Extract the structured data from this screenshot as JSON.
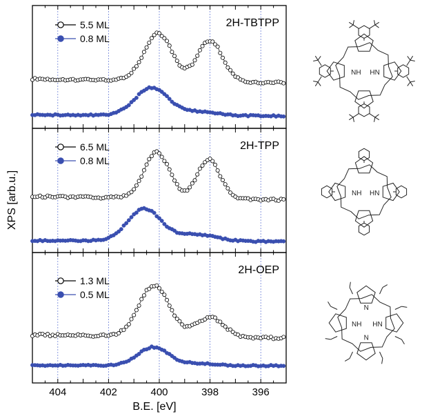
{
  "colors": {
    "accent": "#3a4fb0",
    "frame": "#000000",
    "guide": "#6b7fd7"
  },
  "figure": {
    "ylabel": "XPS [arb.u.]",
    "xlabel": "B.E. [eV]",
    "xticks": [
      "404",
      "402",
      "400",
      "398",
      "396"
    ]
  },
  "chart_data": [
    {
      "type": "line",
      "title": "2H-TBTPP",
      "xlabel": "B.E. [eV]",
      "ylabel": "XPS [arb.u.]",
      "xlim": [
        405,
        395
      ],
      "x_reversed": true,
      "series": [
        {
          "name": "5.5 ML",
          "marker": "open-circle",
          "color": "#000000",
          "peaks": [
            {
              "center": 400.05,
              "height": 0.75,
              "width": 0.55
            },
            {
              "center": 398.0,
              "height": 0.65,
              "width": 0.5
            }
          ],
          "baseline": [
            0.0,
            0.06
          ]
        },
        {
          "name": "0.8 ML",
          "marker": "filled-circle",
          "color": "#3a4fb0",
          "peaks": [
            {
              "center": 400.3,
              "height": 0.5,
              "width": 0.65
            },
            {
              "center": 398.4,
              "height": 0.07,
              "width": 0.7
            }
          ],
          "baseline": [
            0.0,
            0.02
          ]
        }
      ]
    },
    {
      "type": "line",
      "title": "2H-TPP",
      "xlabel": "B.E. [eV]",
      "ylabel": "XPS [arb.u.]",
      "xlim": [
        405,
        395
      ],
      "x_reversed": true,
      "series": [
        {
          "name": "6.5 ML",
          "marker": "open-circle",
          "color": "#000000",
          "peaks": [
            {
              "center": 400.1,
              "height": 0.72,
              "width": 0.5
            },
            {
              "center": 398.05,
              "height": 0.62,
              "width": 0.45
            }
          ],
          "baseline": [
            0.0,
            0.06
          ]
        },
        {
          "name": "0.8 ML",
          "marker": "filled-circle",
          "color": "#3a4fb0",
          "peaks": [
            {
              "center": 400.6,
              "height": 0.58,
              "width": 0.65
            },
            {
              "center": 398.6,
              "height": 0.12,
              "width": 0.8
            }
          ],
          "baseline": [
            0.0,
            0.02
          ]
        }
      ]
    },
    {
      "type": "line",
      "title": "2H-OEP",
      "xlabel": "B.E. [eV]",
      "ylabel": "XPS [arb.u.]",
      "xlim": [
        405,
        395
      ],
      "x_reversed": true,
      "series": [
        {
          "name": "1.3 ML",
          "marker": "open-circle",
          "color": "#000000",
          "peaks": [
            {
              "center": 400.2,
              "height": 0.78,
              "width": 0.6
            },
            {
              "center": 398.0,
              "height": 0.3,
              "width": 0.55
            }
          ],
          "baseline": [
            0.0,
            0.05
          ]
        },
        {
          "name": "0.5 ML",
          "marker": "filled-circle",
          "color": "#3a4fb0",
          "peaks": [
            {
              "center": 400.25,
              "height": 0.33,
              "width": 0.6
            },
            {
              "center": 398.5,
              "height": 0.04,
              "width": 0.7
            }
          ],
          "baseline": [
            0.0,
            0.01
          ]
        }
      ]
    }
  ],
  "molecules": [
    {
      "name": "2H-TBTPP structure",
      "type": "tetraphenylporphyrin-tbutyl",
      "labels": [
        "NH",
        "HN"
      ]
    },
    {
      "name": "2H-TPP structure",
      "type": "tetraphenylporphyrin",
      "labels": [
        "NH",
        "HN"
      ]
    },
    {
      "name": "2H-OEP structure",
      "type": "octaethylporphyrin",
      "labels": [
        "N",
        "NH",
        "HN",
        "N"
      ]
    }
  ]
}
